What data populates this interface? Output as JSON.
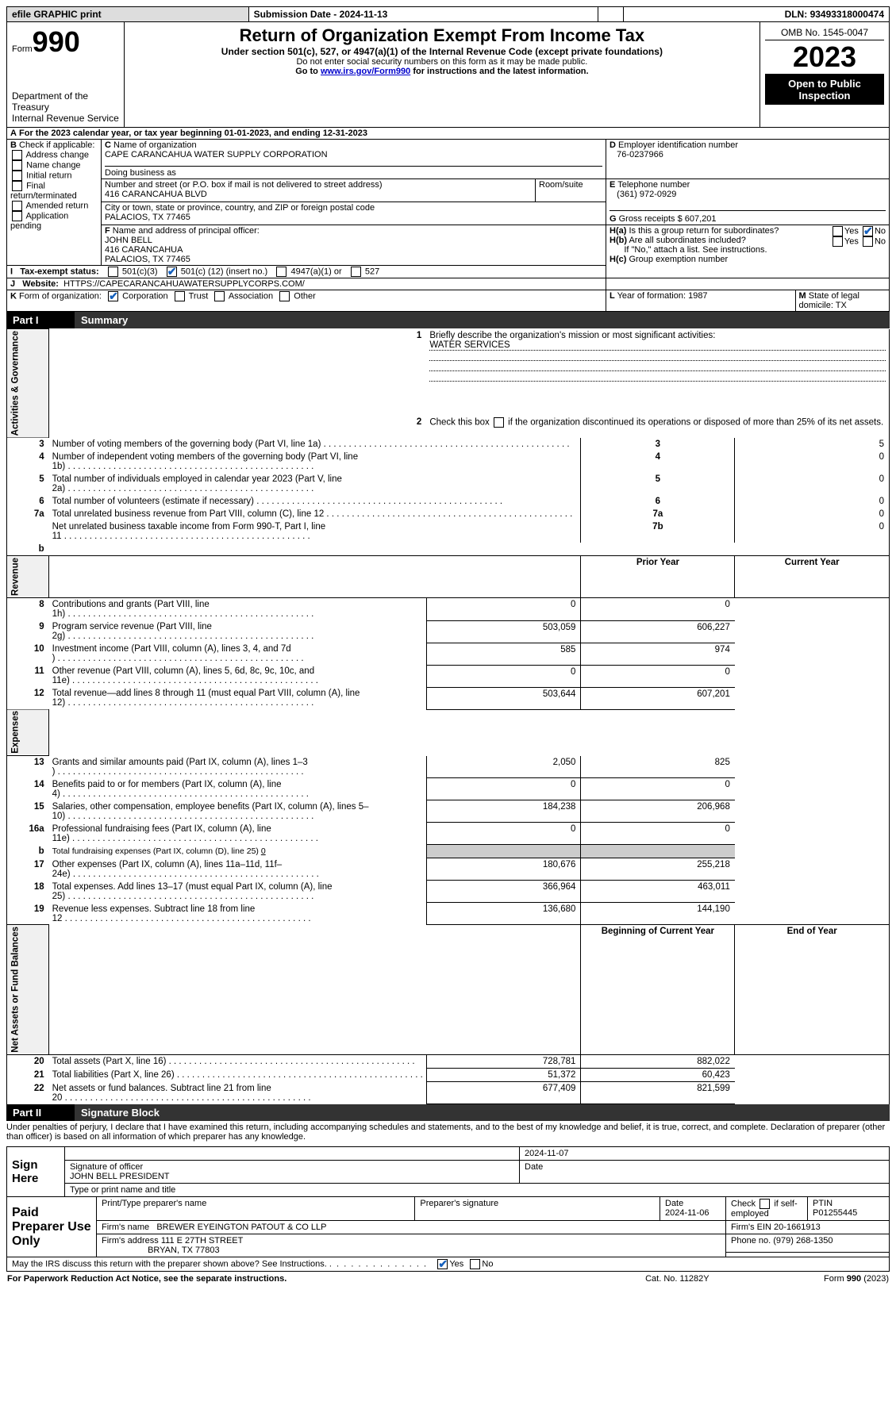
{
  "topbar": {
    "efile": "efile GRAPHIC print",
    "sub_label": "Submission Date - ",
    "sub_date": "2024-11-13",
    "dln_label": "DLN: ",
    "dln": "93493318000474"
  },
  "header": {
    "form_word": "Form",
    "form_no": "990",
    "dept1": "Department of the Treasury",
    "dept2": "Internal Revenue Service",
    "title": "Return of Organization Exempt From Income Tax",
    "sub1": "Under section 501(c), 527, or 4947(a)(1) of the Internal Revenue Code (except private foundations)",
    "sub2": "Do not enter social security numbers on this form as it may be made public.",
    "sub3_pre": "Go to ",
    "sub3_link": "www.irs.gov/Form990",
    "sub3_post": " for instructions and the latest information.",
    "omb": "OMB No. 1545-0047",
    "year": "2023",
    "open": "Open to Public Inspection"
  },
  "A": {
    "text_pre": "For the 2023 calendar year, or tax year beginning ",
    "begin": "01-01-2023",
    "mid": ", and ending ",
    "end": "12-31-2023"
  },
  "B": {
    "label": "Check if applicable:",
    "opts": [
      "Address change",
      "Name change",
      "Initial return",
      "Final return/terminated",
      "Amended return",
      "Application pending"
    ]
  },
  "C": {
    "name_label": "Name of organization",
    "name": "CAPE CARANCAHUA WATER SUPPLY CORPORATION",
    "dba_label": "Doing business as",
    "addr_label": "Number and street (or P.O. box if mail is not delivered to street address)",
    "room_label": "Room/suite",
    "addr": "416 CARANCAHUA BLVD",
    "city_label": "City or town, state or province, country, and ZIP or foreign postal code",
    "city": "PALACIOS, TX  77465"
  },
  "D": {
    "label": "Employer identification number",
    "val": "76-0237966"
  },
  "E": {
    "label": "Telephone number",
    "val": "(361) 972-0929"
  },
  "G": {
    "label": "Gross receipts $",
    "val": "607,201"
  },
  "F": {
    "label": "Name and address of principal officer:",
    "l1": "JOHN BELL",
    "l2": "416 CARANCAHUA",
    "l3": "PALACIOS, TX  77465"
  },
  "H": {
    "a": "Is this a group return for subordinates?",
    "b": "Are all subordinates included?",
    "note": "If \"No,\" attach a list. See instructions.",
    "c": "Group exemption number",
    "yes": "Yes",
    "no": "No"
  },
  "I": {
    "label": "Tax-exempt status:",
    "o1": "501(c)(3)",
    "o2a": "501(c) (",
    "o2b": "12",
    "o2c": ") (insert no.)",
    "o3": "4947(a)(1) or",
    "o4": "527"
  },
  "J": {
    "label": "Website:",
    "val": "HTTPS://CAPECARANCAHUAWATERSUPPLYCORPS.COM/"
  },
  "K": {
    "label": "Form of organization:",
    "o1": "Corporation",
    "o2": "Trust",
    "o3": "Association",
    "o4": "Other"
  },
  "L": {
    "label": "Year of formation:",
    "val": "1987"
  },
  "M": {
    "label": "State of legal domicile:",
    "val": "TX"
  },
  "partI": {
    "label": "Part I",
    "title": "Summary"
  },
  "summary": {
    "q1": "Briefly describe the organization's mission or most significant activities:",
    "q1v": "WATER SERVICES",
    "q2": "Check this box        if the organization discontinued its operations or disposed of more than 25% of its net assets.",
    "rows_top": [
      {
        "n": "3",
        "t": "Number of voting members of the governing body (Part VI, line 1a)",
        "k": "3",
        "v": "5"
      },
      {
        "n": "4",
        "t": "Number of independent voting members of the governing body (Part VI, line 1b)",
        "k": "4",
        "v": "0"
      },
      {
        "n": "5",
        "t": "Total number of individuals employed in calendar year 2023 (Part V, line 2a)",
        "k": "5",
        "v": "0"
      },
      {
        "n": "6",
        "t": "Total number of volunteers (estimate if necessary)",
        "k": "6",
        "v": "0"
      },
      {
        "n": "7a",
        "t": "Total unrelated business revenue from Part VIII, column (C), line 12",
        "k": "7a",
        "v": "0"
      },
      {
        "n": "",
        "t": "Net unrelated business taxable income from Form 990-T, Part I, line 11",
        "k": "7b",
        "v": "0"
      }
    ],
    "col_prior": "Prior Year",
    "col_curr": "Current Year",
    "col_beg": "Beginning of Current Year",
    "col_end": "End of Year",
    "revenue": [
      {
        "n": "8",
        "t": "Contributions and grants (Part VIII, line 1h)",
        "p": "0",
        "c": "0"
      },
      {
        "n": "9",
        "t": "Program service revenue (Part VIII, line 2g)",
        "p": "503,059",
        "c": "606,227"
      },
      {
        "n": "10",
        "t": "Investment income (Part VIII, column (A), lines 3, 4, and 7d )",
        "p": "585",
        "c": "974"
      },
      {
        "n": "11",
        "t": "Other revenue (Part VIII, column (A), lines 5, 6d, 8c, 9c, 10c, and 11e)",
        "p": "0",
        "c": "0"
      },
      {
        "n": "12",
        "t": "Total revenue—add lines 8 through 11 (must equal Part VIII, column (A), line 12)",
        "p": "503,644",
        "c": "607,201"
      }
    ],
    "expenses": [
      {
        "n": "13",
        "t": "Grants and similar amounts paid (Part IX, column (A), lines 1–3 )",
        "p": "2,050",
        "c": "825"
      },
      {
        "n": "14",
        "t": "Benefits paid to or for members (Part IX, column (A), line 4)",
        "p": "0",
        "c": "0"
      },
      {
        "n": "15",
        "t": "Salaries, other compensation, employee benefits (Part IX, column (A), lines 5–10)",
        "p": "184,238",
        "c": "206,968"
      },
      {
        "n": "16a",
        "t": "Professional fundraising fees (Part IX, column (A), line 11e)",
        "p": "0",
        "c": "0"
      }
    ],
    "line_b_pre": "Total fundraising expenses (Part IX, column (D), line 25) ",
    "line_b_val": "0",
    "expenses2": [
      {
        "n": "17",
        "t": "Other expenses (Part IX, column (A), lines 11a–11d, 11f–24e)",
        "p": "180,676",
        "c": "255,218"
      },
      {
        "n": "18",
        "t": "Total expenses. Add lines 13–17 (must equal Part IX, column (A), line 25)",
        "p": "366,964",
        "c": "463,011"
      },
      {
        "n": "19",
        "t": "Revenue less expenses. Subtract line 18 from line 12",
        "p": "136,680",
        "c": "144,190"
      }
    ],
    "netassets": [
      {
        "n": "20",
        "t": "Total assets (Part X, line 16)",
        "p": "728,781",
        "c": "882,022"
      },
      {
        "n": "21",
        "t": "Total liabilities (Part X, line 26)",
        "p": "51,372",
        "c": "60,423"
      },
      {
        "n": "22",
        "t": "Net assets or fund balances. Subtract line 21 from line 20",
        "p": "677,409",
        "c": "821,599"
      }
    ]
  },
  "vlabels": {
    "ag": "Activities & Governance",
    "rev": "Revenue",
    "exp": "Expenses",
    "na": "Net Assets or Fund Balances"
  },
  "partII": {
    "label": "Part II",
    "title": "Signature Block"
  },
  "perjury": "Under penalties of perjury, I declare that I have examined this return, including accompanying schedules and statements, and to the best of my knowledge and belief, it is true, correct, and complete. Declaration of preparer (other than officer) is based on all information of which preparer has any knowledge.",
  "sign": {
    "here": "Sign Here",
    "sig_label": "Signature of officer",
    "date_label": "Date",
    "date": "2024-11-07",
    "name": "JOHN BELL PRESIDENT",
    "name_label": "Type or print name and title"
  },
  "paid": {
    "label": "Paid Preparer Use Only",
    "h1": "Print/Type preparer's name",
    "h2": "Preparer's signature",
    "h3": "Date",
    "h3v": "2024-11-06",
    "h4a": "Check",
    "h4b": "if self-employed",
    "h5": "PTIN",
    "h5v": "P01255445",
    "firm_name_l": "Firm's name",
    "firm_name": "BREWER EYEINGTON PATOUT & CO LLP",
    "firm_ein_l": "Firm's EIN",
    "firm_ein": "20-1661913",
    "firm_addr_l": "Firm's address",
    "firm_addr1": "111 E 27TH STREET",
    "firm_addr2": "BRYAN, TX  77803",
    "phone_l": "Phone no.",
    "phone": "(979) 268-1350"
  },
  "discuss": {
    "q": "May the IRS discuss this return with the preparer shown above? See Instructions.",
    "yes": "Yes",
    "no": "No"
  },
  "footer": {
    "l": "For Paperwork Reduction Act Notice, see the separate instructions.",
    "m": "Cat. No. 11282Y",
    "r": "Form 990 (2023)"
  }
}
